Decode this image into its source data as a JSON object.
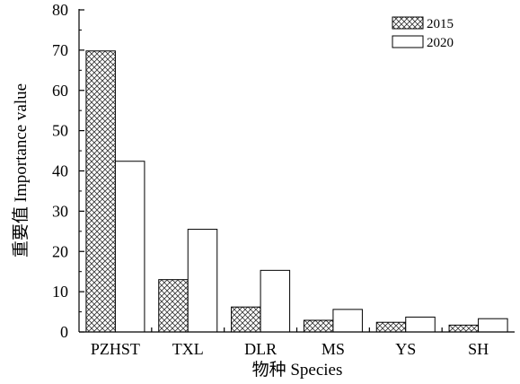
{
  "chart_data": {
    "type": "bar",
    "title": "",
    "xlabel": "物种 Species",
    "ylabel": "重要值 Importance value",
    "categories": [
      "PZHST",
      "TXL",
      "DLR",
      "MS",
      "YS",
      "SH"
    ],
    "series": [
      {
        "name": "2015",
        "values": [
          69.8,
          13.0,
          6.2,
          2.9,
          2.4,
          1.7
        ],
        "pattern": "crosshatch"
      },
      {
        "name": "2020",
        "values": [
          42.4,
          25.5,
          15.3,
          5.6,
          3.7,
          3.3
        ],
        "pattern": "solid-white"
      }
    ],
    "ylim": [
      0,
      80
    ],
    "yticks": [
      "0",
      "10",
      "20",
      "30",
      "40",
      "50",
      "60",
      "70",
      "80"
    ],
    "grid": false,
    "legend_position": "top-right"
  }
}
